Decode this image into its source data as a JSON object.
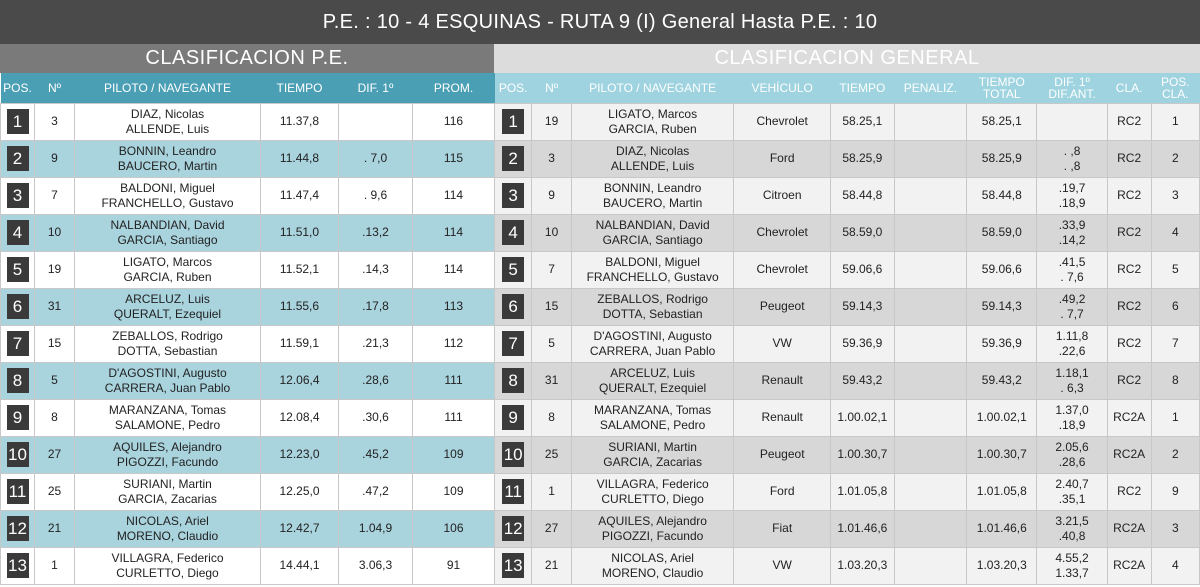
{
  "header": {
    "title": "P.E. : 10 - 4 ESQUINAS - RUTA 9 (I) General Hasta P.E. : 10"
  },
  "pe": {
    "title": "CLASIFICACION P.E.",
    "columns": [
      "POS.",
      "Nº",
      "PILOTO / NAVEGANTE",
      "TIEMPO",
      "DIF. 1º",
      "PROM."
    ],
    "rows": [
      {
        "pos": "1",
        "num": "3",
        "piloto": "DIAZ, Nicolas",
        "navegante": "ALLENDE, Luis",
        "tiempo": "11.37,8",
        "dif": "",
        "prom": "116"
      },
      {
        "pos": "2",
        "num": "9",
        "piloto": "BONNIN, Leandro",
        "navegante": "BAUCERO, Martin",
        "tiempo": "11.44,8",
        "dif": ". 7,0",
        "prom": "115"
      },
      {
        "pos": "3",
        "num": "7",
        "piloto": "BALDONI, Miguel",
        "navegante": "FRANCHELLO, Gustavo",
        "tiempo": "11.47,4",
        "dif": ". 9,6",
        "prom": "114"
      },
      {
        "pos": "4",
        "num": "10",
        "piloto": "NALBANDIAN, David",
        "navegante": "GARCIA, Santiago",
        "tiempo": "11.51,0",
        "dif": ".13,2",
        "prom": "114"
      },
      {
        "pos": "5",
        "num": "19",
        "piloto": "LIGATO, Marcos",
        "navegante": "GARCIA, Ruben",
        "tiempo": "11.52,1",
        "dif": ".14,3",
        "prom": "114"
      },
      {
        "pos": "6",
        "num": "31",
        "piloto": "ARCELUZ, Luis",
        "navegante": "QUERALT, Ezequiel",
        "tiempo": "11.55,6",
        "dif": ".17,8",
        "prom": "113"
      },
      {
        "pos": "7",
        "num": "15",
        "piloto": "ZEBALLOS, Rodrigo",
        "navegante": "DOTTA, Sebastian",
        "tiempo": "11.59,1",
        "dif": ".21,3",
        "prom": "112"
      },
      {
        "pos": "8",
        "num": "5",
        "piloto": "D'AGOSTINI, Augusto",
        "navegante": "CARRERA, Juan Pablo",
        "tiempo": "12.06,4",
        "dif": ".28,6",
        "prom": "111"
      },
      {
        "pos": "9",
        "num": "8",
        "piloto": "MARANZANA, Tomas",
        "navegante": "SALAMONE, Pedro",
        "tiempo": "12.08,4",
        "dif": ".30,6",
        "prom": "111"
      },
      {
        "pos": "10",
        "num": "27",
        "piloto": "AQUILES, Alejandro",
        "navegante": "PIGOZZI, Facundo",
        "tiempo": "12.23,0",
        "dif": ".45,2",
        "prom": "109"
      },
      {
        "pos": "11",
        "num": "25",
        "piloto": "SURIANI, Martin",
        "navegante": "GARCIA, Zacarias",
        "tiempo": "12.25,0",
        "dif": ".47,2",
        "prom": "109"
      },
      {
        "pos": "12",
        "num": "21",
        "piloto": "NICOLAS, Ariel",
        "navegante": "MORENO, Claudio",
        "tiempo": "12.42,7",
        "dif": "1.04,9",
        "prom": "106"
      },
      {
        "pos": "13",
        "num": "1",
        "piloto": "VILLAGRA, Federico",
        "navegante": "CURLETTO, Diego",
        "tiempo": "14.44,1",
        "dif": "3.06,3",
        "prom": "91"
      }
    ]
  },
  "general": {
    "title": "CLASIFICACION GENERAL",
    "columns": [
      "POS.",
      "Nº",
      "PILOTO / NAVEGANTE",
      "VEHÍCULO",
      "TIEMPO",
      "PENALIZ.",
      "TIEMPO TOTAL",
      "DIF. 1º DIF.ANT.",
      "CLA.",
      "POS. CLA."
    ],
    "rows": [
      {
        "pos": "1",
        "num": "19",
        "piloto": "LIGATO, Marcos",
        "navegante": "GARCIA, Ruben",
        "vehiculo": "Chevrolet",
        "tiempo": "58.25,1",
        "penaliz": "",
        "total": "58.25,1",
        "dif1": "",
        "difant": "",
        "cla": "RC2",
        "poscla": "1"
      },
      {
        "pos": "2",
        "num": "3",
        "piloto": "DIAZ, Nicolas",
        "navegante": "ALLENDE, Luis",
        "vehiculo": "Ford",
        "tiempo": "58.25,9",
        "penaliz": "",
        "total": "58.25,9",
        "dif1": ". ,8",
        "difant": ". ,8",
        "cla": "RC2",
        "poscla": "2"
      },
      {
        "pos": "3",
        "num": "9",
        "piloto": "BONNIN, Leandro",
        "navegante": "BAUCERO, Martin",
        "vehiculo": "Citroen",
        "tiempo": "58.44,8",
        "penaliz": "",
        "total": "58.44,8",
        "dif1": ".19,7",
        "difant": ".18,9",
        "cla": "RC2",
        "poscla": "3"
      },
      {
        "pos": "4",
        "num": "10",
        "piloto": "NALBANDIAN, David",
        "navegante": "GARCIA, Santiago",
        "vehiculo": "Chevrolet",
        "tiempo": "58.59,0",
        "penaliz": "",
        "total": "58.59,0",
        "dif1": ".33,9",
        "difant": ".14,2",
        "cla": "RC2",
        "poscla": "4"
      },
      {
        "pos": "5",
        "num": "7",
        "piloto": "BALDONI, Miguel",
        "navegante": "FRANCHELLO, Gustavo",
        "vehiculo": "Chevrolet",
        "tiempo": "59.06,6",
        "penaliz": "",
        "total": "59.06,6",
        "dif1": ".41,5",
        "difant": ". 7,6",
        "cla": "RC2",
        "poscla": "5"
      },
      {
        "pos": "6",
        "num": "15",
        "piloto": "ZEBALLOS, Rodrigo",
        "navegante": "DOTTA, Sebastian",
        "vehiculo": "Peugeot",
        "tiempo": "59.14,3",
        "penaliz": "",
        "total": "59.14,3",
        "dif1": ".49,2",
        "difant": ". 7,7",
        "cla": "RC2",
        "poscla": "6"
      },
      {
        "pos": "7",
        "num": "5",
        "piloto": "D'AGOSTINI, Augusto",
        "navegante": "CARRERA, Juan Pablo",
        "vehiculo": "VW",
        "tiempo": "59.36,9",
        "penaliz": "",
        "total": "59.36,9",
        "dif1": "1.11,8",
        "difant": ".22,6",
        "cla": "RC2",
        "poscla": "7"
      },
      {
        "pos": "8",
        "num": "31",
        "piloto": "ARCELUZ, Luis",
        "navegante": "QUERALT, Ezequiel",
        "vehiculo": "Renault",
        "tiempo": "59.43,2",
        "penaliz": "",
        "total": "59.43,2",
        "dif1": "1.18,1",
        "difant": ". 6,3",
        "cla": "RC2",
        "poscla": "8"
      },
      {
        "pos": "9",
        "num": "8",
        "piloto": "MARANZANA, Tomas",
        "navegante": "SALAMONE, Pedro",
        "vehiculo": "Renault",
        "tiempo": "1.00.02,1",
        "penaliz": "",
        "total": "1.00.02,1",
        "dif1": "1.37,0",
        "difant": ".18,9",
        "cla": "RC2A",
        "poscla": "1"
      },
      {
        "pos": "10",
        "num": "25",
        "piloto": "SURIANI, Martin",
        "navegante": "GARCIA, Zacarias",
        "vehiculo": "Peugeot",
        "tiempo": "1.00.30,7",
        "penaliz": "",
        "total": "1.00.30,7",
        "dif1": "2.05,6",
        "difant": ".28,6",
        "cla": "RC2A",
        "poscla": "2"
      },
      {
        "pos": "11",
        "num": "1",
        "piloto": "VILLAGRA, Federico",
        "navegante": "CURLETTO, Diego",
        "vehiculo": "Ford",
        "tiempo": "1.01.05,8",
        "penaliz": "",
        "total": "1.01.05,8",
        "dif1": "2.40,7",
        "difant": ".35,1",
        "cla": "RC2",
        "poscla": "9"
      },
      {
        "pos": "12",
        "num": "27",
        "piloto": "AQUILES, Alejandro",
        "navegante": "PIGOZZI, Facundo",
        "vehiculo": "Fiat",
        "tiempo": "1.01.46,6",
        "penaliz": "",
        "total": "1.01.46,6",
        "dif1": "3.21,5",
        "difant": ".40,8",
        "cla": "RC2A",
        "poscla": "3"
      },
      {
        "pos": "13",
        "num": "21",
        "piloto": "NICOLAS, Ariel",
        "navegante": "MORENO, Claudio",
        "vehiculo": "VW",
        "tiempo": "1.03.20,3",
        "penaliz": "",
        "total": "1.03.20,3",
        "dif1": "4.55,2",
        "difant": "1.33,7",
        "cla": "RC2A",
        "poscla": "4"
      }
    ]
  }
}
